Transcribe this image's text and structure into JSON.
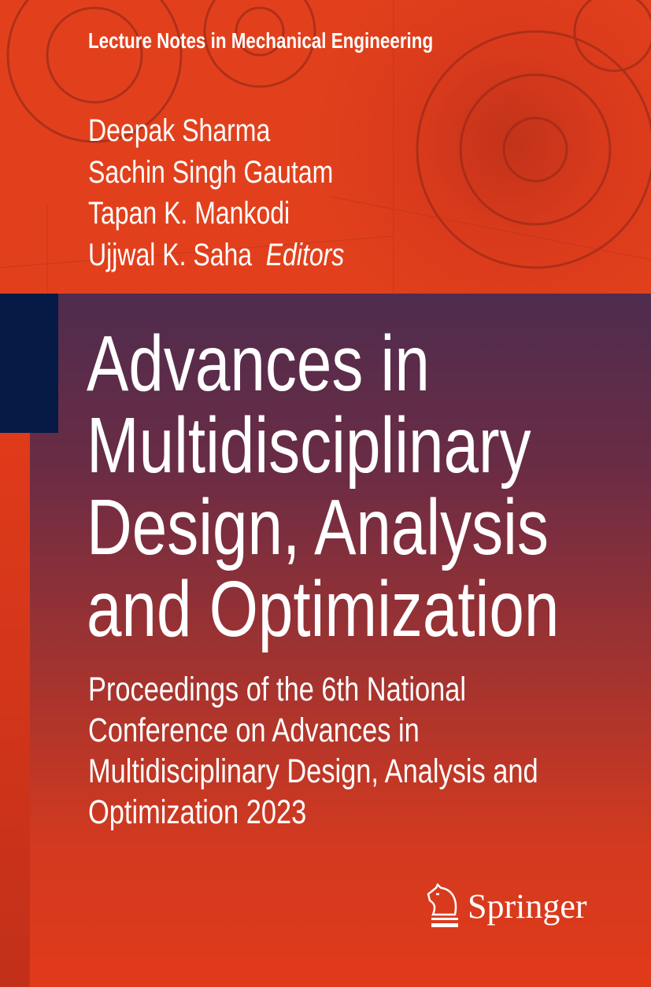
{
  "series": "Lecture Notes in Mechanical Engineering",
  "editors": [
    "Deepak Sharma",
    "Sachin Singh Gautam",
    "Tapan K. Mankodi",
    "Ujjwal K. Saha"
  ],
  "editors_role": "Editors",
  "title_lines": [
    "Advances in",
    "Multidisciplinary",
    "Design, Analysis",
    "and Optimization"
  ],
  "subtitle_lines": [
    "Proceedings of the 6th National",
    "Conference on Advances in",
    "Multidisciplinary Design, Analysis and",
    "Optimization 2023"
  ],
  "publisher": "Springer",
  "colors": {
    "orange": "#e03a1a",
    "purple": "#4f2c4e",
    "navy": "#051a45"
  }
}
